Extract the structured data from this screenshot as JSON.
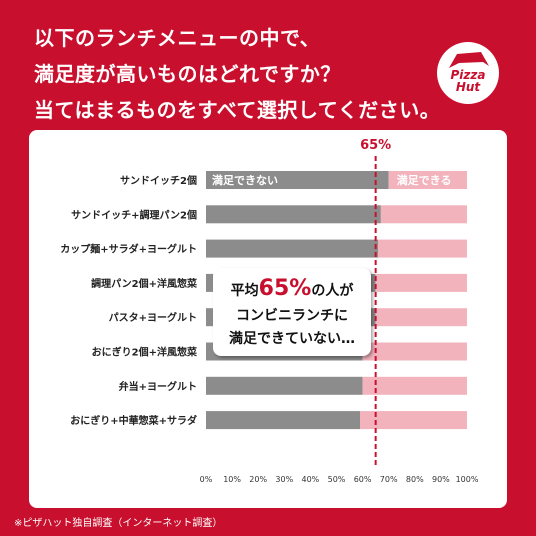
{
  "header": {
    "line1": "以下のランチメニューの中で、",
    "line2": "満足度が高いものはどれですか？",
    "line3": "当てはまるものをすべて選択してください。"
  },
  "logo": {
    "line1": "Pizza",
    "line2": "Hut",
    "icon": "pizza-hut-roof-icon"
  },
  "footnote": "※ピザハット独自調査（インターネット調査）",
  "callout": {
    "pre": "平均",
    "pct": "65%",
    "post": "の人が",
    "line2": "コンビニランチに",
    "line3": "満足できていない…"
  },
  "colors": {
    "brand": "#c8102e",
    "unsatisfied": "#8c8c8c",
    "satisfied": "#f2b3bd",
    "reference": "#c8102e"
  },
  "chart_data": {
    "type": "bar",
    "orientation": "horizontal",
    "stacked": true,
    "categories": [
      "サンドイッチ2個",
      "サンドイッチ+調理パン2個",
      "カップ麺+サラダ+ヨーグルト",
      "調理パン2個+洋風惣菜",
      "パスタ+ヨーグルト",
      "おにぎり2個+洋風惣菜",
      "弁当+ヨーグルト",
      "おにぎり+中華惣菜+サラダ"
    ],
    "series": [
      {
        "name": "満足できない",
        "values": [
          70,
          67,
          66,
          65,
          65,
          60,
          60,
          59
        ]
      },
      {
        "name": "満足できる",
        "values": [
          30,
          33,
          34,
          35,
          35,
          40,
          40,
          41
        ]
      }
    ],
    "xlim": [
      0,
      100
    ],
    "xticks": [
      "0%",
      "10%",
      "20%",
      "30%",
      "40%",
      "50%",
      "60%",
      "70%",
      "80%",
      "90%",
      "100%"
    ],
    "reference_line": {
      "value": 65,
      "label": "65%"
    }
  }
}
